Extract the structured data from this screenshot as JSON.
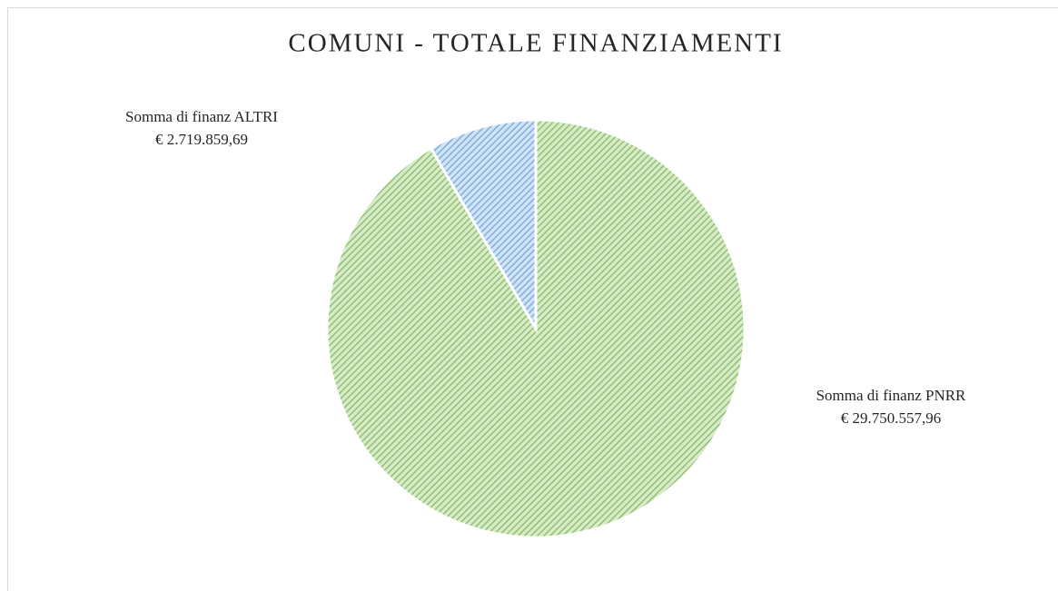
{
  "chart_data": {
    "type": "pie",
    "title": "COMUNI - TOTALE FINANZIAMENTI",
    "categories": [
      "Somma di finanz PNRR",
      "Somma di finanz ALTRI"
    ],
    "values": [
      29750557.96,
      2719859.69
    ],
    "value_labels": [
      "€ 29.750.557,96",
      "€ 2.719.859,69"
    ],
    "colors": [
      "#8fc26a",
      "#7eaee0"
    ]
  }
}
